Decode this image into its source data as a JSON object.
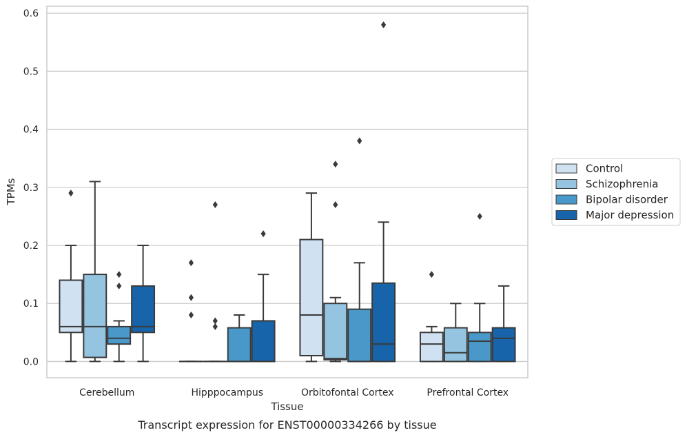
{
  "caption": "Transcript expression for ENST00000334266 by tissue",
  "chart_data": {
    "type": "box",
    "xlabel": "Tissue",
    "ylabel": "TPMs",
    "ylim": [
      -0.028,
      0.612
    ],
    "yticks": [
      "0.0",
      "0.1",
      "0.2",
      "0.3",
      "0.4",
      "0.5",
      "0.6"
    ],
    "categories": [
      "Cerebellum",
      "Hipppocampus",
      "Orbitofontal Cortex",
      "Prefrontal Cortex"
    ],
    "grid": "horizontal",
    "legend_position": "right",
    "series": [
      {
        "name": "Control",
        "color": "#d0e1f2",
        "boxes": [
          {
            "q1": 0.05,
            "median": 0.06,
            "q3": 0.14,
            "whisker_low": 0.0,
            "whisker_high": 0.2,
            "outliers": [
              0.29
            ]
          },
          {
            "q1": 0.0,
            "median": 0.0,
            "q3": 0.0,
            "whisker_low": 0.0,
            "whisker_high": 0.0,
            "outliers": [
              0.08,
              0.11,
              0.17
            ]
          },
          {
            "q1": 0.01,
            "median": 0.08,
            "q3": 0.21,
            "whisker_low": 0.0,
            "whisker_high": 0.29,
            "outliers": []
          },
          {
            "q1": 0.0,
            "median": 0.03,
            "q3": 0.05,
            "whisker_low": 0.0,
            "whisker_high": 0.06,
            "outliers": [
              0.15
            ]
          }
        ]
      },
      {
        "name": "Schizophrenia",
        "color": "#94c4df",
        "boxes": [
          {
            "q1": 0.007,
            "median": 0.06,
            "q3": 0.15,
            "whisker_low": 0.0,
            "whisker_high": 0.31,
            "outliers": []
          },
          {
            "q1": 0.0,
            "median": 0.0,
            "q3": 0.0,
            "whisker_low": 0.0,
            "whisker_high": 0.0,
            "outliers": [
              0.06,
              0.07,
              0.27
            ]
          },
          {
            "q1": 0.003,
            "median": 0.005,
            "q3": 0.1,
            "whisker_low": 0.0,
            "whisker_high": 0.11,
            "outliers": [
              0.27,
              0.34
            ]
          },
          {
            "q1": 0.0,
            "median": 0.015,
            "q3": 0.058,
            "whisker_low": 0.0,
            "whisker_high": 0.1,
            "outliers": []
          }
        ]
      },
      {
        "name": "Bipolar disorder",
        "color": "#4a98c9",
        "boxes": [
          {
            "q1": 0.03,
            "median": 0.04,
            "q3": 0.06,
            "whisker_low": 0.0,
            "whisker_high": 0.07,
            "outliers": [
              0.13,
              0.15
            ]
          },
          {
            "q1": 0.0,
            "median": 0.0,
            "q3": 0.058,
            "whisker_low": 0.0,
            "whisker_high": 0.08,
            "outliers": []
          },
          {
            "q1": 0.0,
            "median": 0.0,
            "q3": 0.09,
            "whisker_low": 0.0,
            "whisker_high": 0.17,
            "outliers": [
              0.38
            ]
          },
          {
            "q1": 0.0,
            "median": 0.035,
            "q3": 0.05,
            "whisker_low": 0.0,
            "whisker_high": 0.1,
            "outliers": [
              0.25
            ]
          }
        ]
      },
      {
        "name": "Major depression",
        "color": "#1764ab",
        "boxes": [
          {
            "q1": 0.05,
            "median": 0.06,
            "q3": 0.13,
            "whisker_low": 0.0,
            "whisker_high": 0.2,
            "outliers": []
          },
          {
            "q1": 0.0,
            "median": 0.0,
            "q3": 0.07,
            "whisker_low": 0.0,
            "whisker_high": 0.15,
            "outliers": [
              0.22
            ]
          },
          {
            "q1": 0.0,
            "median": 0.03,
            "q3": 0.135,
            "whisker_low": 0.0,
            "whisker_high": 0.24,
            "outliers": [
              0.58
            ]
          },
          {
            "q1": 0.0,
            "median": 0.04,
            "q3": 0.058,
            "whisker_low": 0.0,
            "whisker_high": 0.13,
            "outliers": []
          }
        ]
      }
    ]
  }
}
